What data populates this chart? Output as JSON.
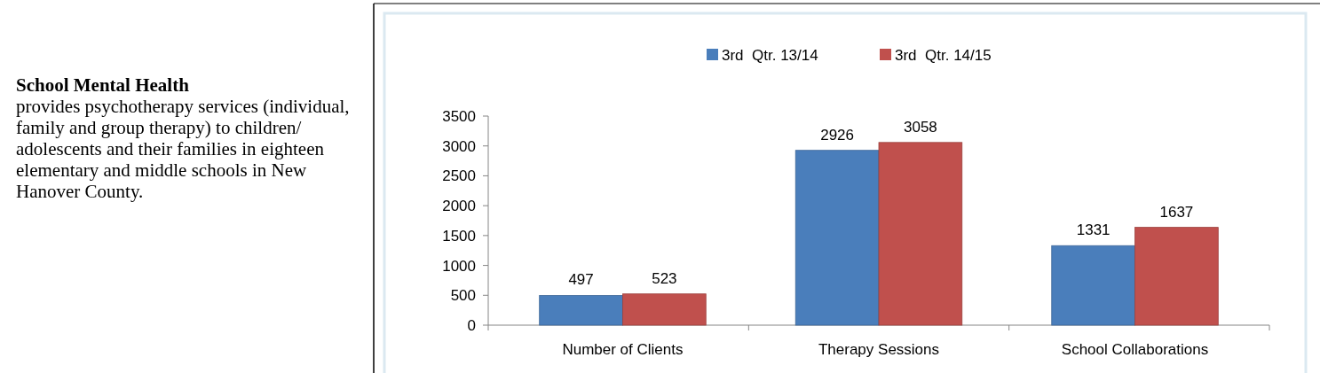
{
  "chart_data": {
    "type": "bar",
    "title": "School Mental Health",
    "annotations": [
      "provides psychotherapy services (individual, family and group therapy) to children/ adolescents and their families in eighteen elementary and middle schools in New Hanover County."
    ],
    "categories": [
      "Number of Clients",
      "Therapy Sessions",
      "School Collaborations"
    ],
    "series": [
      {
        "name": "3rd  Qtr. 13/14",
        "color": "#4a7ebb",
        "values": [
          497,
          2926,
          1331
        ]
      },
      {
        "name": "3rd  Qtr. 14/15",
        "color": "#c0504d",
        "values": [
          523,
          3058,
          1637
        ]
      }
    ],
    "ylim": [
      0,
      3500
    ],
    "yticks": [
      0,
      500,
      1000,
      1500,
      2000,
      2500,
      3000,
      3500
    ],
    "data_labels": true,
    "legend": "top",
    "grid": false
  }
}
